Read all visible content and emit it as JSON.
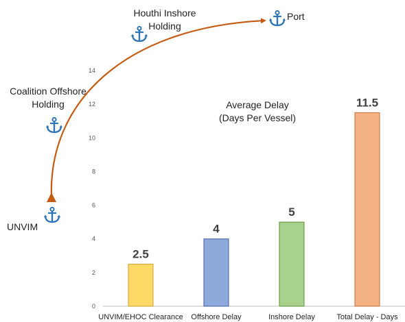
{
  "chart_data": {
    "type": "bar",
    "title_lines": [
      "Average Delay",
      "(Days Per Vessel)"
    ],
    "categories": [
      "UNVIM/EHOC Clearance",
      "Offshore Delay",
      "Inshore Delay",
      "Total Delay - Days"
    ],
    "values": [
      2.5,
      4,
      5,
      11.5
    ],
    "value_labels": [
      "2.5",
      "4",
      "5",
      "11.5"
    ],
    "bar_colors": [
      "#FFD966",
      "#8EA9DB",
      "#A9D18E",
      "#F4B183"
    ],
    "bar_edge_colors": [
      "#C9A227",
      "#3F5E9A",
      "#5E8F3A",
      "#C0703A"
    ],
    "ylim": [
      0,
      14
    ],
    "yticks": [
      0,
      2,
      4,
      6,
      8,
      10,
      12,
      14
    ],
    "grid": false
  },
  "route": {
    "color": "#C55A11",
    "anchor_color": "#2E75B6",
    "stops": {
      "unvim": "UNVIM",
      "coalition": [
        "Coalition Offshore",
        "Holding"
      ],
      "houthi": [
        "Houthi Inshore",
        "Holding"
      ],
      "port": "Port"
    }
  }
}
